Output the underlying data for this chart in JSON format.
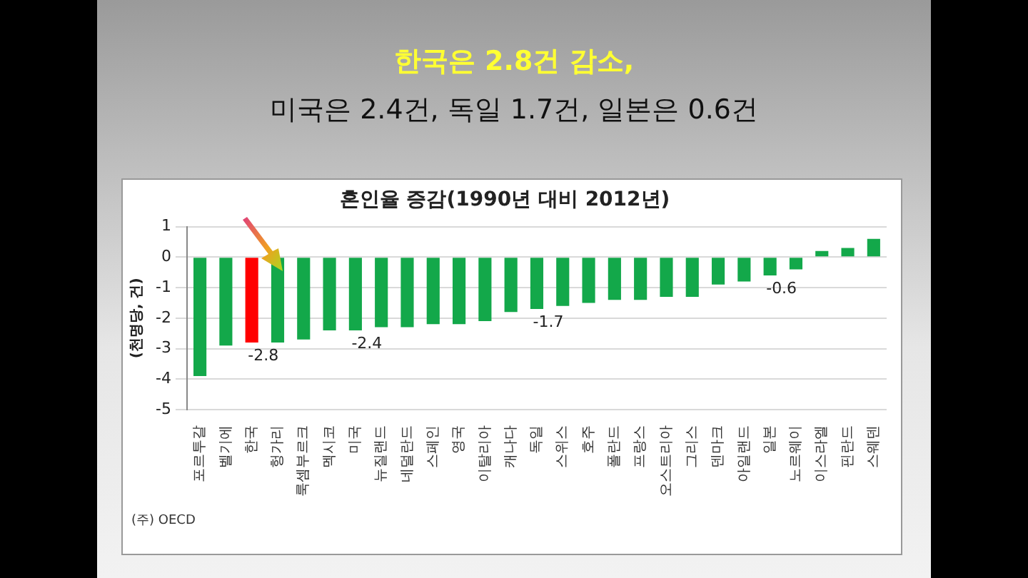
{
  "chart_data": {
    "type": "bar",
    "title": "혼인율 증감(1990년 대비 2012년)",
    "annotations": [
      "한국은 2.8건 감소,",
      "미국은 2.4건, 독일 1.7건, 일본은 0.6건",
      "(주) OECD"
    ],
    "ylabel": "(천명당, 건)",
    "categories": [
      "포르투갈",
      "벨기에",
      "한국",
      "헝가리",
      "룩셈부르크",
      "멕시코",
      "미국",
      "뉴질랜드",
      "네덜란드",
      "스페인",
      "영국",
      "이탈리아",
      "캐나다",
      "독일",
      "스위스",
      "호주",
      "폴란드",
      "프랑스",
      "오스트리아",
      "그리스",
      "덴마크",
      "아일랜드",
      "일본",
      "노르웨이",
      "이스라엘",
      "핀란드",
      "스웨덴"
    ],
    "values": [
      -3.9,
      -2.9,
      -2.8,
      -2.8,
      -2.7,
      -2.4,
      -2.4,
      -2.3,
      -2.3,
      -2.2,
      -2.2,
      -2.1,
      -1.8,
      -1.7,
      -1.6,
      -1.5,
      -1.4,
      -1.4,
      -1.3,
      -1.3,
      -0.9,
      -0.8,
      -0.6,
      -0.4,
      0.2,
      0.3,
      0.6
    ],
    "value_labels": [
      null,
      null,
      "-2.8",
      null,
      null,
      null,
      "-2.4",
      null,
      null,
      null,
      null,
      null,
      null,
      "-1.7",
      null,
      null,
      null,
      null,
      null,
      null,
      null,
      null,
      "-0.6",
      null,
      null,
      null,
      null
    ],
    "colors": [
      "#13a84a",
      "#13a84a",
      "#ff0000",
      "#13a84a",
      "#13a84a",
      "#13a84a",
      "#13a84a",
      "#13a84a",
      "#13a84a",
      "#13a84a",
      "#13a84a",
      "#13a84a",
      "#13a84a",
      "#13a84a",
      "#13a84a",
      "#13a84a",
      "#13a84a",
      "#13a84a",
      "#13a84a",
      "#13a84a",
      "#13a84a",
      "#13a84a",
      "#13a84a",
      "#13a84a",
      "#13a84a",
      "#13a84a",
      "#13a84a"
    ],
    "ylim": [
      -5,
      1
    ],
    "yticks": [
      -5,
      -4,
      -3,
      -2,
      -1,
      0,
      1
    ],
    "grid": "y",
    "legend": false
  }
}
